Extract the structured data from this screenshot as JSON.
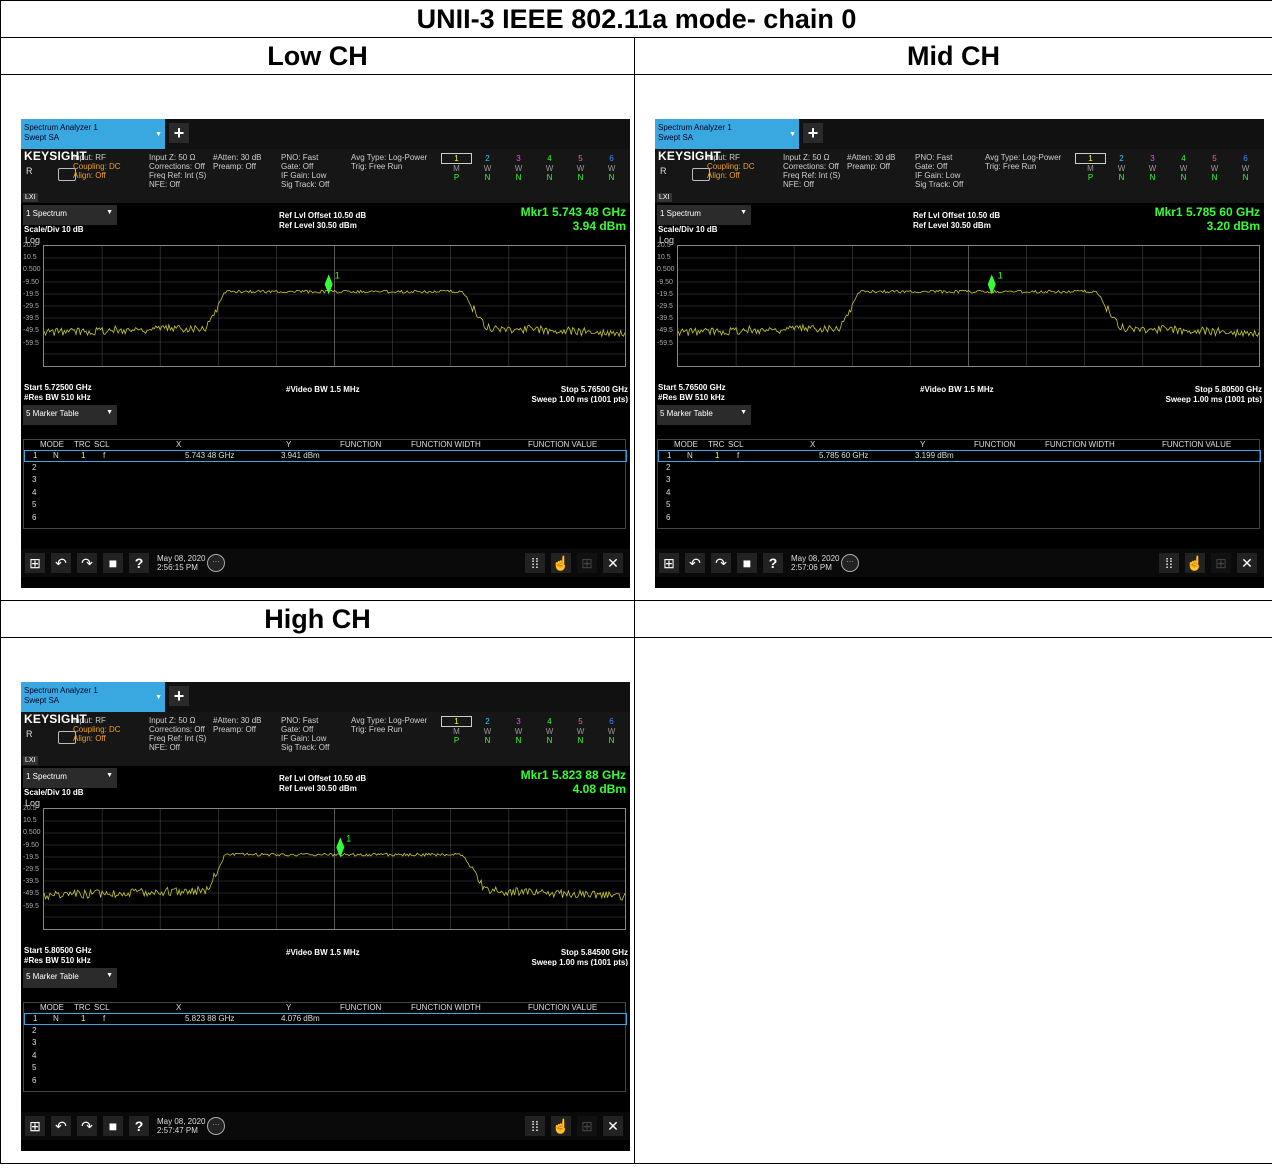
{
  "title": "UNII-3 IEEE 802.11a mode- chain 0",
  "headers": {
    "low": "Low CH",
    "mid": "Mid CH",
    "high": "High CH"
  },
  "common": {
    "tab_line1": "Spectrum Analyzer 1",
    "tab_line2": "Swept SA",
    "brand": "KEYSIGHT",
    "r_label": "R",
    "lxi": "LXI",
    "input": "Input: RF",
    "coupling": "Coupling: DC",
    "align": "Align: Off",
    "inputz": "Input Z: 50 Ω",
    "corrections": "Corrections: Off",
    "freqref": "Freq Ref: Int (S)",
    "nfe": "NFE: Off",
    "atten": "#Atten: 30 dB",
    "preamp": "Preamp: Off",
    "pno": "PNO: Fast",
    "gate": "Gate: Off",
    "ifgain": "IF Gain: Low",
    "sigtrack": "Sig Track: Off",
    "avgtype": "Avg Type: Log-Power",
    "trig": "Trig: Free Run",
    "trace_nums": [
      "1",
      "2",
      "3",
      "4",
      "5",
      "6"
    ],
    "trace_modes": [
      "M",
      "W",
      "W",
      "W",
      "W",
      "W"
    ],
    "trace_dets": [
      "P",
      "N",
      "N",
      "N",
      "N",
      "N"
    ],
    "spectrum_menu": "1 Spectrum",
    "ref_offset": "Ref Lvl Offset 10.50 dB",
    "ref_level": "Ref Level 30.50 dBm",
    "scale_div": "Scale/Div 10 dB",
    "log": "Log",
    "y_ticks": [
      "20.5",
      "10.5",
      "0.500",
      "-9.50",
      "-19.5",
      "-29.5",
      "-39.5",
      "-49.5",
      "-59.5"
    ],
    "vbw": "#Video BW 1.5 MHz",
    "rbw": "#Res BW 510 kHz",
    "sweep": "Sweep 1.00 ms (1001 pts)",
    "marker_menu": "5 Marker Table",
    "col_mode": "MODE",
    "col_trc": "TRC",
    "col_scl": "SCL",
    "col_x": "X",
    "col_y": "Y",
    "col_function": "FUNCTION",
    "col_fwidth": "FUNCTION WIDTH",
    "col_fvalue": "FUNCTION VALUE",
    "row_mode": "N",
    "row_trc": "1",
    "row_scl": "f",
    "row_nums": [
      "1",
      "2",
      "3",
      "4",
      "5",
      "6"
    ],
    "marker_label": "1",
    "trace_color": "#c8c832",
    "marker_color": "#33ff33",
    "help": "?"
  },
  "low": {
    "mkr_freq": "Mkr1  5.743 48 GHz",
    "mkr_amp": "3.94 dBm",
    "start": "Start 5.72500 GHz",
    "stop": "Stop 5.76500 GHz",
    "row_x": "5.743 48 GHz",
    "row_y": "3.941 dBm",
    "date": "May 08, 2020",
    "time": "2:56:15 PM"
  },
  "mid": {
    "mkr_freq": "Mkr1  5.785 60 GHz",
    "mkr_amp": "3.20 dBm",
    "start": "Start 5.76500 GHz",
    "stop": "Stop 5.80500 GHz",
    "row_x": "5.785 60 GHz",
    "row_y": "3.199 dBm",
    "date": "May 08, 2020",
    "time": "2:57:06 PM"
  },
  "high": {
    "mkr_freq": "Mkr1  5.823 88 GHz",
    "mkr_amp": "4.08 dBm",
    "start": "Start 5.80500 GHz",
    "stop": "Stop 5.84500 GHz",
    "row_x": "5.823 88 GHz",
    "row_y": "4.076 dBm",
    "date": "May 08, 2020",
    "time": "2:57:47 PM"
  }
}
